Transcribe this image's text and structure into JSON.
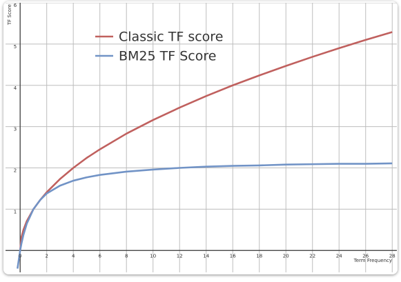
{
  "chart_data": {
    "type": "line",
    "x": [
      -0.2,
      0,
      0.1,
      0.25,
      0.5,
      1,
      1.5,
      2,
      3,
      4,
      5,
      6,
      8,
      10,
      12,
      14,
      16,
      18,
      20,
      22,
      24,
      26,
      28
    ],
    "series": [
      {
        "name": "Classic TF score",
        "color": "#c0605e",
        "values": [
          null,
          0,
          0.32,
          0.5,
          0.71,
          1,
          1.22,
          1.41,
          1.73,
          2,
          2.24,
          2.45,
          2.83,
          3.16,
          3.46,
          3.74,
          4,
          4.24,
          4.47,
          4.69,
          4.9,
          5.1,
          5.29
        ]
      },
      {
        "name": "BM25 TF Score",
        "color": "#7193c6",
        "values": [
          -0.44,
          0,
          0.17,
          0.38,
          0.65,
          1,
          1.22,
          1.38,
          1.57,
          1.69,
          1.77,
          1.83,
          1.91,
          1.96,
          2,
          2.03,
          2.05,
          2.06,
          2.08,
          2.09,
          2.1,
          2.1,
          2.11
        ]
      }
    ],
    "x_label": "Term Frequency",
    "y_label": "TF Score",
    "xlim": [
      -1.1,
      28.35
    ],
    "ylim": [
      -0.53,
      6
    ],
    "xticks": [
      0,
      2,
      4,
      6,
      8,
      10,
      12,
      14,
      16,
      18,
      20,
      22,
      24,
      26,
      28
    ],
    "yticks": [
      1,
      2,
      3,
      4,
      5,
      6
    ],
    "grid": true
  }
}
